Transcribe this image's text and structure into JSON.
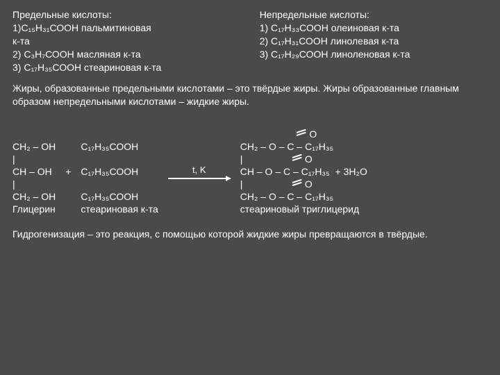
{
  "left": {
    "title": "Предельные кислоты:",
    "i1": "1)С₁₅Н₃₁СООН пальмитиновая",
    "i1b": "к-та",
    "i2": "2) С₃Н₇СООН масляная к-та",
    "i3": "3) С₁₇Н₃₅СООН стеариновая к-та"
  },
  "right": {
    "title": "Непредельные кислоты:",
    "i1": "1) С₁₇Н₃₃СООН олеиновая к-та",
    "i2": "2) С₁₇Н₃₁СООН линолевая к-та",
    "i3": "3) С₁₇Н₂₉СООН линоленовая к-та"
  },
  "para1": " Жиры, образованные предельными кислотами – это твёрдые жиры. Жиры образованные главным образом непредельными кислотами – жидкие жиры.",
  "glycerol": {
    "l1": "СН₂ – ОН",
    "l2": "|",
    "l3": "СН – ОН",
    "l4": "|",
    "l5": "СН₂ – ОН",
    "name": "Глицерин"
  },
  "plus": "+",
  "acid": {
    "l1": "С₁₇Н₃₅СООН",
    "l2": "С₁₇Н₃₅СООН",
    "l3": "С₁₇Н₃₅СООН",
    "name": "стеариновая к-та"
  },
  "cond": "t, K",
  "product": {
    "o": "O",
    "r1": "СН₂ – О – С – С₁₇Н₃₅",
    "bar": "|",
    "r2": "СН – О – С – С₁₇Н₃₅",
    "r3": "СН₂ – О – С – С₁₇Н₃₅",
    "name": "стеариновый триглицерид",
    "water": "+  3Н₂О"
  },
  "para2": "Гидрогенизация – это реакция, с помощью которой жидкие жиры превращаются в твёрдые."
}
